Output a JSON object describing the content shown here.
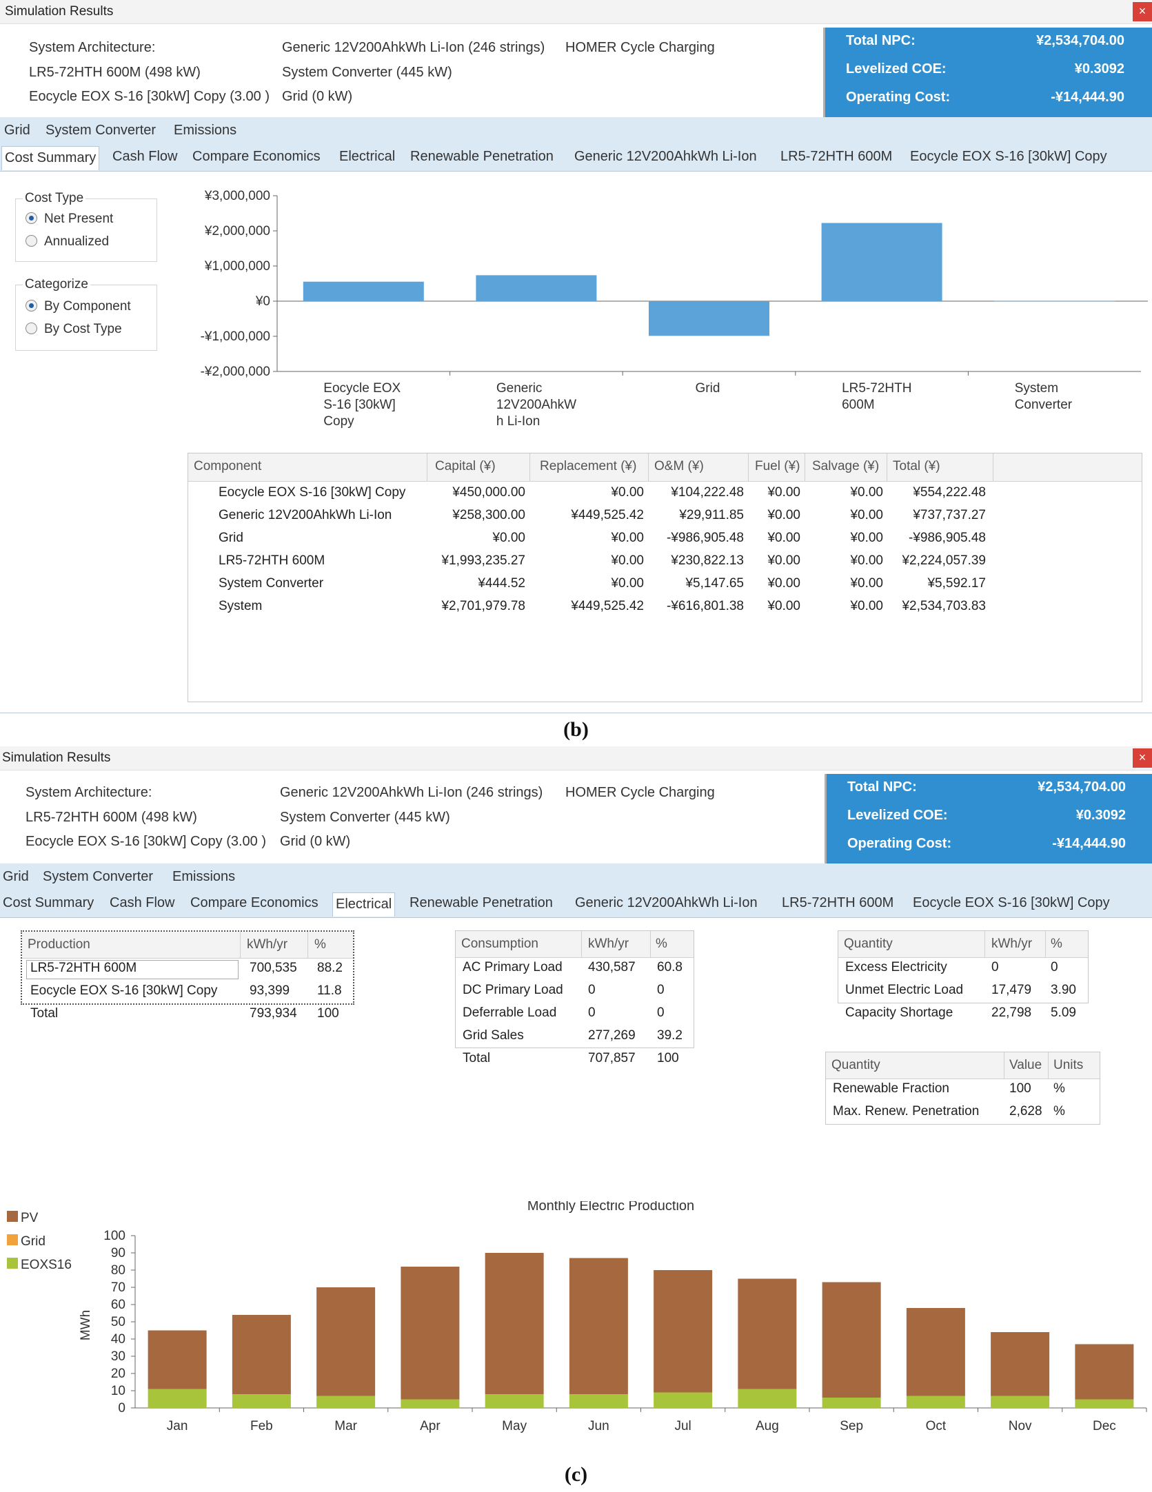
{
  "window_title": "Simulation Results",
  "close_glyph": "×",
  "architecture": {
    "label": "System Architecture:",
    "items": [
      "LR5-72HTH 600M (498 kW)",
      "Eocycle EOX S-16 [30kW] Copy (3.00 )",
      "Generic 12V200AhkWh Li-Ion (246 strings)",
      "HOMER Cycle Charging",
      "System Converter (445 kW)",
      "Grid (0 kW)"
    ]
  },
  "summary": {
    "npc_label": "Total NPC:",
    "npc_value": "¥2,534,704.00",
    "coe_label": "Levelized COE:",
    "coe_value": "¥0.3092",
    "opcost_label": "Operating Cost:",
    "opcost_value": "-¥14,444.90"
  },
  "tabs_row1": [
    "Grid",
    "System Converter",
    "Emissions"
  ],
  "tabs_row2": [
    "Cost Summary",
    "Cash Flow",
    "Compare Economics",
    "Electrical",
    "Renewable Penetration",
    "Generic 12V200AhkWh Li-Ion",
    "LR5-72HTH 600M",
    "Eocycle EOX S-16 [30kW] Copy"
  ],
  "cost_type": {
    "title": "Cost Type",
    "options": [
      "Net Present",
      "Annualized"
    ],
    "selected": "Net Present"
  },
  "categorize": {
    "title": "Categorize",
    "options": [
      "By Component",
      "By Cost Type"
    ],
    "selected": "By Component"
  },
  "chart_data": [
    {
      "type": "bar",
      "categories": [
        "Eocycle EOX S-16 [30kW] Copy",
        "Generic 12V200AhkWh Li-Ion",
        "Grid",
        "LR5-72HTH 600M",
        "System Converter"
      ],
      "category_lines": [
        [
          "Eocycle EOX",
          "S-16 [30kW]",
          "Copy"
        ],
        [
          "Generic",
          "12V200AhkW",
          "h Li-Ion"
        ],
        [
          "Grid"
        ],
        [
          "LR5-72HTH",
          "600M"
        ],
        [
          "System",
          "Converter"
        ]
      ],
      "values": [
        554222.48,
        737737.27,
        -986905.48,
        2224057.39,
        5592.17
      ],
      "ylim": [
        -2000000,
        3000000
      ],
      "yticks": [
        3000000,
        2000000,
        1000000,
        0,
        -1000000,
        -2000000
      ],
      "ytick_labels": [
        "¥3,000,000",
        "¥2,000,000",
        "¥1,000,000",
        "¥0",
        "-¥1,000,000",
        "-¥2,000,000"
      ],
      "color": "#5ba3d9"
    },
    {
      "type": "bar",
      "stacked": true,
      "title": "Monthly Electric Production",
      "ylabel": "MWh",
      "categories": [
        "Jan",
        "Feb",
        "Mar",
        "Apr",
        "May",
        "Jun",
        "Jul",
        "Aug",
        "Sep",
        "Oct",
        "Nov",
        "Dec"
      ],
      "series": [
        {
          "name": "PV",
          "color": "#a6683e",
          "values": [
            34,
            46,
            63,
            77,
            82,
            79,
            71,
            64,
            67,
            51,
            37,
            32
          ]
        },
        {
          "name": "Grid",
          "color": "#f0a33c",
          "values": [
            0,
            0,
            0,
            0,
            0,
            0,
            0,
            0,
            0,
            0,
            0,
            0
          ]
        },
        {
          "name": "EOXS16",
          "color": "#a8c43a",
          "values": [
            11,
            8,
            7,
            5,
            8,
            8,
            9,
            11,
            6,
            7,
            7,
            5
          ]
        }
      ],
      "ylim": [
        0,
        100
      ],
      "yticks": [
        0,
        10,
        20,
        30,
        40,
        50,
        60,
        70,
        80,
        90,
        100
      ]
    }
  ],
  "cost_table": {
    "headers": [
      "Component",
      "Capital (¥)",
      "Replacement (¥)",
      "O&M (¥)",
      "Fuel (¥)",
      "Salvage (¥)",
      "Total (¥)"
    ],
    "rows": [
      [
        "Eocycle EOX S-16 [30kW] Copy",
        "¥450,000.00",
        "¥0.00",
        "¥104,222.48",
        "¥0.00",
        "¥0.00",
        "¥554,222.48"
      ],
      [
        "Generic 12V200AhkWh Li-Ion",
        "¥258,300.00",
        "¥449,525.42",
        "¥29,911.85",
        "¥0.00",
        "¥0.00",
        "¥737,737.27"
      ],
      [
        "Grid",
        "¥0.00",
        "¥0.00",
        "-¥986,905.48",
        "¥0.00",
        "¥0.00",
        "-¥986,905.48"
      ],
      [
        "LR5-72HTH 600M",
        "¥1,993,235.27",
        "¥0.00",
        "¥230,822.13",
        "¥0.00",
        "¥0.00",
        "¥2,224,057.39"
      ],
      [
        "System Converter",
        "¥444.52",
        "¥0.00",
        "¥5,147.65",
        "¥0.00",
        "¥0.00",
        "¥5,592.17"
      ],
      [
        "System",
        "¥2,701,979.78",
        "¥449,525.42",
        "-¥616,801.38",
        "¥0.00",
        "¥0.00",
        "¥2,534,703.83"
      ]
    ]
  },
  "caption_b": "(b)",
  "caption_c": "(c)",
  "production_table": {
    "headers": [
      "Production",
      "kWh/yr",
      "%"
    ],
    "rows": [
      [
        "LR5-72HTH 600M",
        "700,535",
        "88.2"
      ],
      [
        "Eocycle EOX S-16 [30kW] Copy",
        "93,399",
        "11.8"
      ],
      [
        "Total",
        "793,934",
        "100"
      ]
    ]
  },
  "consumption_table": {
    "headers": [
      "Consumption",
      "kWh/yr",
      "%"
    ],
    "rows": [
      [
        "AC Primary Load",
        "430,587",
        "60.8"
      ],
      [
        "DC Primary Load",
        "0",
        "0"
      ],
      [
        "Deferrable Load",
        "0",
        "0"
      ],
      [
        "Grid Sales",
        "277,269",
        "39.2"
      ],
      [
        "Total",
        "707,857",
        "100"
      ]
    ]
  },
  "quantity_table": {
    "headers": [
      "Quantity",
      "kWh/yr",
      "%"
    ],
    "rows": [
      [
        "Excess Electricity",
        "0",
        "0"
      ],
      [
        "Unmet Electric Load",
        "17,479",
        "3.90"
      ],
      [
        "Capacity Shortage",
        "22,798",
        "5.09"
      ]
    ]
  },
  "renewable_table": {
    "headers": [
      "Quantity",
      "Value",
      "Units"
    ],
    "rows": [
      [
        "Renewable Fraction",
        "100",
        "%"
      ],
      [
        "Max. Renew. Penetration",
        "2,628",
        "%"
      ]
    ]
  }
}
